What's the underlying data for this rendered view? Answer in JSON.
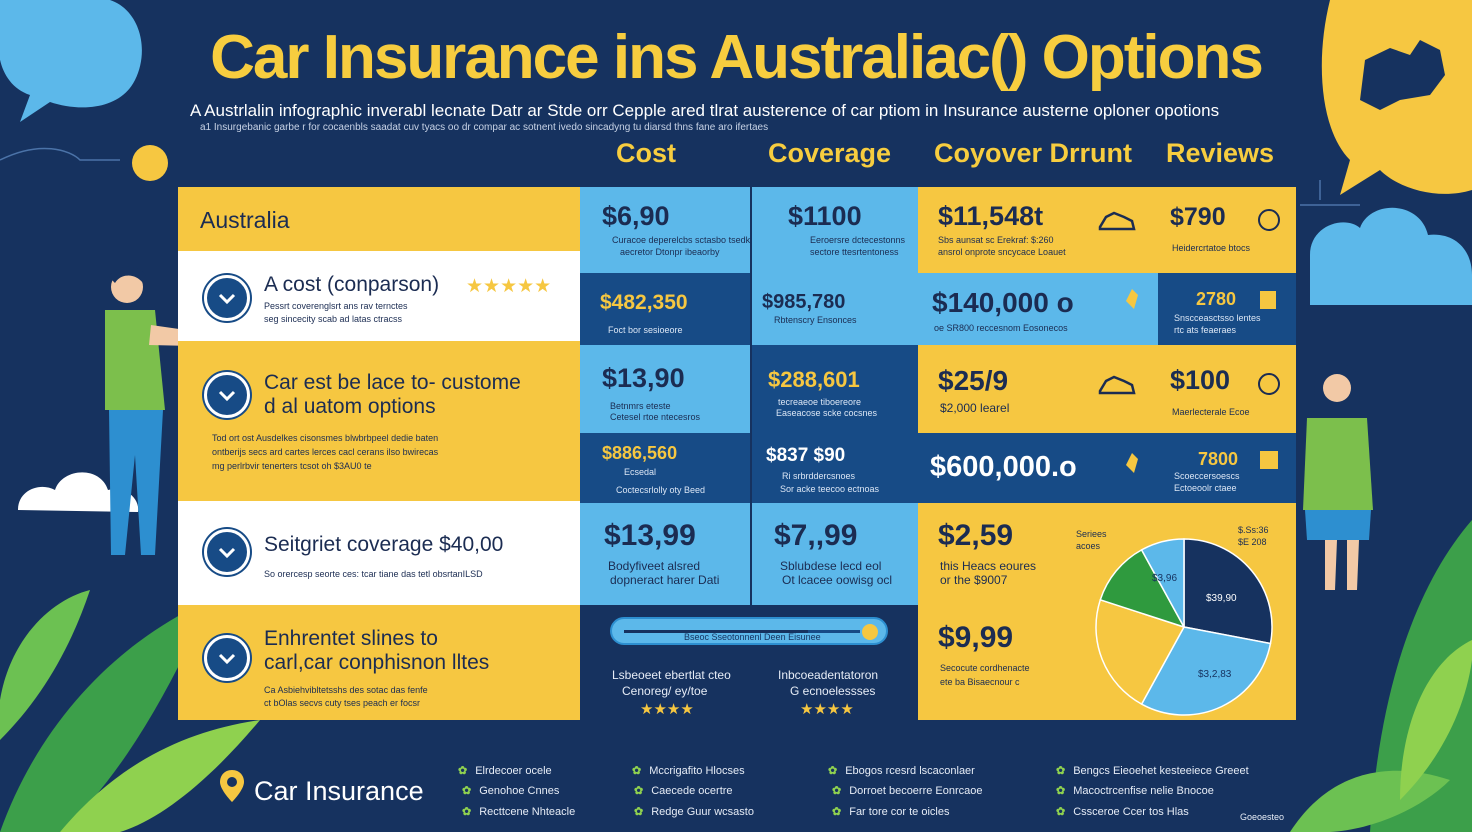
{
  "header": {
    "title": "Car Insurance ins Australiac() Options",
    "subtitle": "A Austrlalin infographic inverabl lecnate Datr ar Stde orr Cepple ared tlrat austerence of car ptiom in Insurance austerne oploner opotions",
    "subtitle_small": "a1 Insurgebanic garbe r for cocaenbls saadat cuv tyacs oo dr compar ac sotnent ivedo sincadyng tu diarsd thns fane aro ifertaes"
  },
  "columns": [
    "Cost",
    "Coverage",
    "Coyover Drrunt",
    "Reviews"
  ],
  "left_panel": {
    "country_label": "Australia",
    "rows": [
      {
        "title": "A cost (conparson)",
        "desc1": "Pessrt coverenglsrt ans rav ternctes",
        "desc2": "seg sincecity scab ad latas ctracss",
        "rating": "★★★★★"
      },
      {
        "title1": "Car est be lace to- custome",
        "title2": "d al uatom options",
        "desc1": "Tod ort ost Ausdelkes cisonsmes blwbrbpeel dedie baten",
        "desc2": "ontberijs secs ard cartes lerces cacl cerans ilso bwirecas",
        "desc3": "mg perlrbvir tenerters tcsot oh $3AU0 te"
      },
      {
        "title": "Seitgriet coverage $40,00",
        "desc1": "So orercesp seorte ces: tcar tiane das tetl obsrtanILSD"
      },
      {
        "title1": "Enhrentet slines to",
        "title2": "carl,car conphisnon lltes",
        "desc1": "Ca Asbiehvibltetsshs des sotac das fenfe",
        "desc2": "ct bOlas secvs cuty tses peach er focsr"
      }
    ]
  },
  "grid": {
    "cost": [
      {
        "value": "$6,90",
        "desc": "Curacoe deperelcbs sctasbo tsedk",
        "desc2": "aecretor Dtonpr ibeaorby"
      },
      {
        "value": "$482,350",
        "desc": "Foct bor sesioeore"
      },
      {
        "value": "$13,90",
        "desc": "Betnmrs eteste",
        "desc2": "Cetesel rtoe ntecesros"
      },
      {
        "value": "$886,560",
        "desc": "Ecsedal",
        "desc2": "Coctecsrlolly oty Beed"
      },
      {
        "value": "$13,99",
        "desc": "Bodyfiveet alsred",
        "desc2": "dopneract harer Dati"
      }
    ],
    "coverage": [
      {
        "value": "$1100",
        "desc": "Eeroersre dctecestonns",
        "desc2": "sectore ttesrtentoness"
      },
      {
        "value": "$985,780",
        "desc": "Rbtenscry Ensonces"
      },
      {
        "value": "$288,601",
        "desc": "tecreaeoe tiboereore",
        "desc2": "Easeacose scke cocsnes"
      },
      {
        "value": "$837 $90",
        "desc": "Ri srbrddercsnoes",
        "desc2": "Sor acke teecoo ectnoas"
      },
      {
        "value": "$7,,99",
        "desc": "Sblubdese lecd eol",
        "desc2": "Ot lcacee oowisg ocl"
      }
    ],
    "discount": [
      {
        "value": "$11,548t",
        "desc": "Sbs aunsat sc Erekraf: $:260",
        "desc2": "ansrol onprote sncycace Loauet"
      },
      {
        "value": "$140,000 o",
        "desc": "oe SR800 reccesnom Eosonecos"
      },
      {
        "value": "$25/9",
        "desc": "$2,000 learel"
      },
      {
        "value": "$600,000.o",
        "desc": ""
      },
      {
        "value": "$2,59",
        "desc": "this Heacs eoures",
        "desc2": "or the $9007"
      },
      {
        "value": "$9,99",
        "desc": "Secocute cordhenacte",
        "desc2": "ete ba Bisaecnour c"
      }
    ],
    "reviews": [
      {
        "value": "$790",
        "desc": "Heidercrtatoe btocs"
      },
      {
        "value": "2780",
        "desc": "Snscceasctsso lentes",
        "desc2": "rtc ats feaeraes"
      },
      {
        "value": "$100",
        "desc": "Maerlecterale Ecoe"
      },
      {
        "value": "7800",
        "desc": "Scoeccersoescs",
        "desc2": "Ectoeoolr ctaee"
      }
    ]
  },
  "progress": {
    "label": "Bseoc Sseotonnenl Deen Eisunee",
    "fraction": 0.78
  },
  "bottom_ratings": [
    {
      "line1": "Lsbeoeet ebertlat cteo",
      "line2": "Cenoreg/ ey/toe",
      "rating": "★★★★"
    },
    {
      "line1": "Inbcoeadentatoron",
      "line2": "G ecnoelessses",
      "rating": "★★★★"
    }
  ],
  "pie": {
    "labels": [
      "$3,96",
      "$39,90",
      "$3,2,83"
    ],
    "legend_left": [
      "Seriees",
      "acoes"
    ],
    "legend_right": [
      "$.Ss:36",
      "$E 208"
    ],
    "slices": [
      {
        "value": 28,
        "color": "#16325f"
      },
      {
        "value": 30,
        "color": "#5cb8ea"
      },
      {
        "value": 22,
        "color": "#f6c741"
      },
      {
        "value": 12,
        "color": "#2f9a3e"
      },
      {
        "value": 8,
        "color": "#5cb8ea"
      }
    ]
  },
  "footer": {
    "brand": "Car Insurance",
    "items": [
      [
        "Elrdecoer ocele",
        "Genohoe Cnnes",
        "Recttcene Nhteacle"
      ],
      [
        "Mccrigafito Hlocses",
        "Caecede ocertre",
        "Redge Guur wcsasto"
      ],
      [
        "Ebogos rcesrd lscaconlaer",
        "Dorroet becoerre Eonrcaoe",
        "Far tore cor te oicles"
      ],
      [
        "Bengcs Eieoehet kesteeiece Greeet",
        "Macoctrcenfise nelie Bnocoe",
        "Cssceroe Ccer tos Hlas"
      ]
    ],
    "corner": "Goeoesteo"
  },
  "colors": {
    "navy": "#16325f",
    "yellow": "#f6c741",
    "lightblue": "#5cb8ea",
    "darkblue": "#174b86",
    "green": "#8fd14f"
  }
}
